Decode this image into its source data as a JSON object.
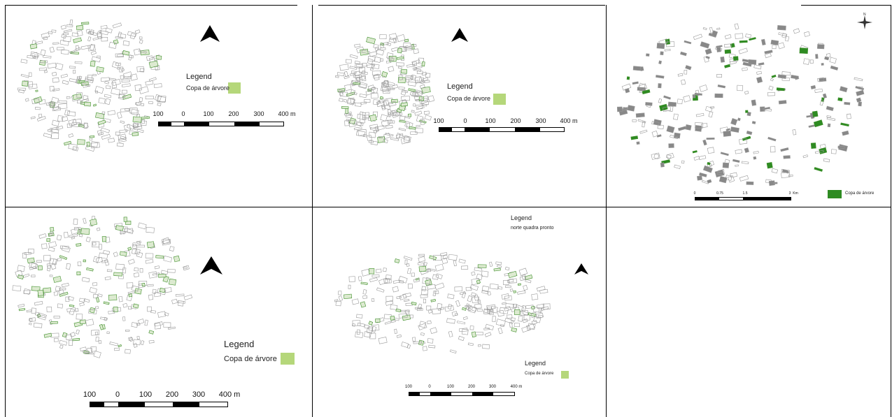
{
  "colors": {
    "swatch_light": "#b5d77a",
    "swatch_dark": "#2e8b22",
    "canopy": "#3f8f2a",
    "streets": "#9a9a9a"
  },
  "icons": {
    "north_arrow": "north-arrow-icon",
    "compass": "compass-rose-icon"
  },
  "panels": [
    {
      "id": 1,
      "legend_title": "Legend",
      "legend_item": "Copa de árvore",
      "scale_ticks": [
        "100",
        "0",
        "100",
        "200",
        "300",
        "400 m"
      ]
    },
    {
      "id": 2,
      "legend_title": "Legend",
      "legend_item": "Copa de árvore",
      "scale_ticks": [
        "100",
        "0",
        "100",
        "200",
        "300",
        "400 m"
      ]
    },
    {
      "id": 3,
      "compass_label": "N",
      "legend_item": "Copa de árvore",
      "scale_ticks": [
        "0",
        "0.75",
        "1.5",
        "3",
        "Km"
      ]
    },
    {
      "id": 4,
      "legend_title": "Legend",
      "legend_item": "Copa de árvore",
      "scale_ticks": [
        "100",
        "0",
        "100",
        "200",
        "300",
        "400 m"
      ]
    },
    {
      "id": 5,
      "top_legend_title": "Legend",
      "top_legend_item": "norte quadra pronto",
      "legend_title": "Legend",
      "legend_item": "Copa de árvore",
      "scale_ticks": [
        "100",
        "0",
        "100",
        "200",
        "300",
        "400 m"
      ]
    }
  ]
}
